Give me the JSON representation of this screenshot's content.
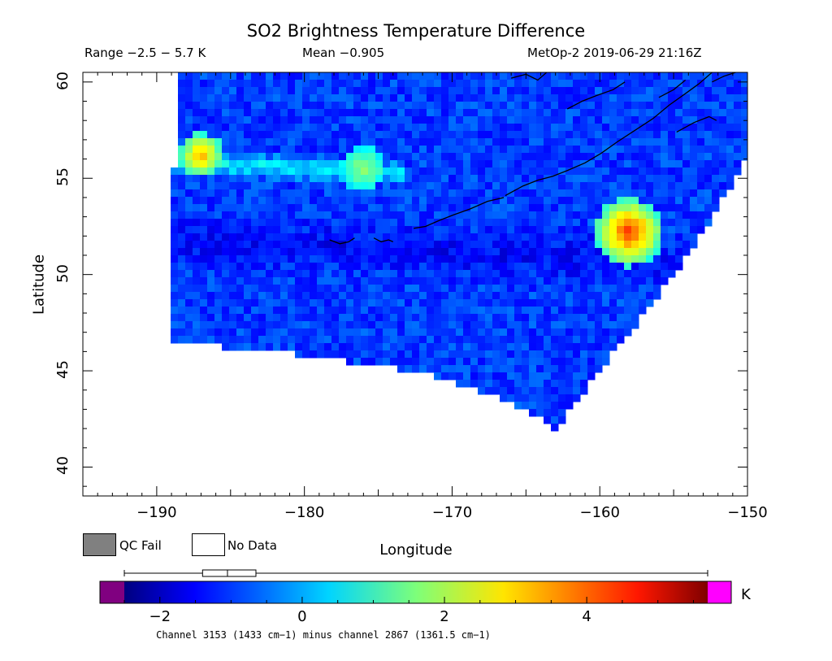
{
  "title": "SO2 Brightness Temperature Difference",
  "header": {
    "range": "Range −2.5 − 5.7 K",
    "mean": "Mean −0.905",
    "satellite_time": "MetOp-2 2019-06-29 21:16Z"
  },
  "axes": {
    "x_label": "Longitude",
    "y_label": "Latitude",
    "x_range": [
      -195,
      -150
    ],
    "y_range": [
      38.5,
      60.5
    ],
    "x_ticks": [
      -190,
      -180,
      -170,
      -160,
      -150
    ],
    "x_tick_labels": [
      "−190",
      "−180",
      "−170",
      "−160",
      "−150"
    ],
    "y_ticks": [
      40,
      45,
      50,
      55,
      60
    ],
    "y_tick_labels": [
      "40",
      "45",
      "50",
      "55",
      "60"
    ]
  },
  "legend": {
    "qc_fail": "QC Fail",
    "no_data": "No Data",
    "qc_fail_color": "#808080",
    "no_data_color": "#ffffff"
  },
  "colorbar": {
    "min": -2.5,
    "max": 5.7,
    "unit": "K",
    "ticks": [
      -2,
      0,
      2,
      4
    ],
    "tick_labels": [
      "−2",
      "0",
      "2",
      "4"
    ],
    "under_color": "#800080",
    "over_color": "#ff00ff",
    "box_stats": {
      "whisker_low": -2.5,
      "q1": -1.4,
      "median": -1.05,
      "q3": -0.65,
      "whisker_high": 5.7
    }
  },
  "footnote": "Channel 3153 (1433 cm−1) minus channel 2867 (1361.5 cm−1)",
  "chart_data": {
    "type": "heatmap",
    "variable": "SO2 brightness temperature difference",
    "units": "K",
    "satellite": "MetOp-2",
    "time": "2019-06-29 21:16Z",
    "value_range": [
      -2.5,
      5.7
    ],
    "mean": -0.905,
    "features": [
      {
        "lon": -158,
        "lat": 52.2,
        "value": 4.5
      },
      {
        "lon": -187,
        "lat": 56.2,
        "value": 3.5
      },
      {
        "lon": -176,
        "lat": 55.5,
        "value": 2.0
      }
    ],
    "swath_edge": [
      [
        -189,
        46.5
      ],
      [
        -180,
        45.8
      ],
      [
        -172,
        44.9
      ],
      [
        -167,
        43.7
      ],
      [
        -163,
        42.0
      ],
      [
        -158,
        47.0
      ],
      [
        -154,
        51.0
      ],
      [
        -150,
        56.0
      ],
      [
        -150,
        60.5
      ],
      [
        -188.5,
        60.5
      ],
      [
        -188.8,
        56
      ]
    ]
  }
}
